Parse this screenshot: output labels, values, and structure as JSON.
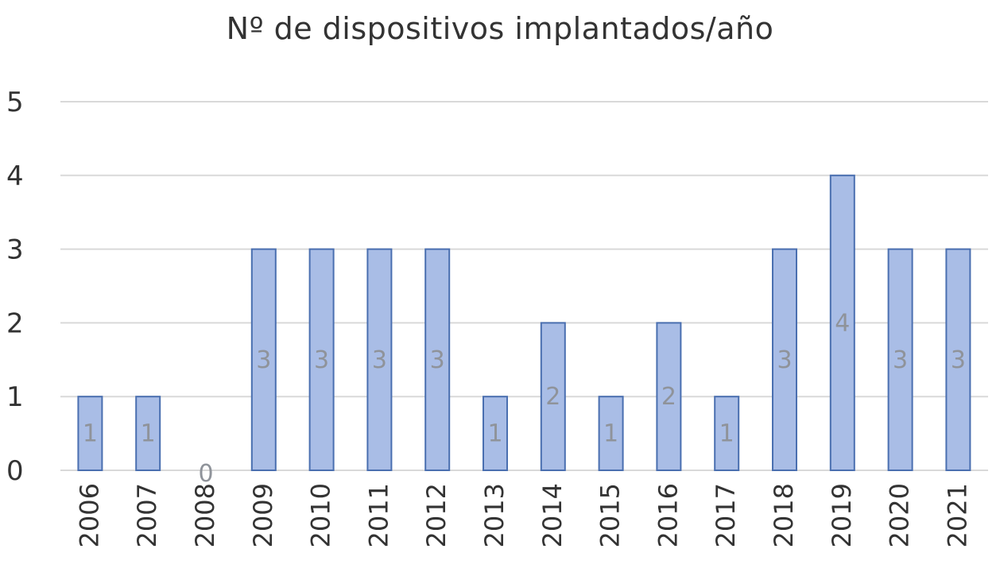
{
  "chart_data": {
    "type": "bar",
    "title": "Nº de dispositivos implantados/año",
    "xlabel": "",
    "ylabel": "",
    "categories": [
      "2006",
      "2007",
      "2008",
      "2009",
      "2010",
      "2011",
      "2012",
      "2013",
      "2014",
      "2015",
      "2016",
      "2017",
      "2018",
      "2019",
      "2020",
      "2021"
    ],
    "values": [
      1,
      1,
      0,
      3,
      3,
      3,
      3,
      1,
      2,
      1,
      2,
      1,
      3,
      4,
      3,
      3
    ],
    "ylim": [
      0,
      5
    ],
    "yticks": [
      0,
      1,
      2,
      3,
      4,
      5
    ],
    "grid": true,
    "bar_color": "#a9bde6",
    "bar_edge_color": "#4a6fb0",
    "data_labels": true
  }
}
